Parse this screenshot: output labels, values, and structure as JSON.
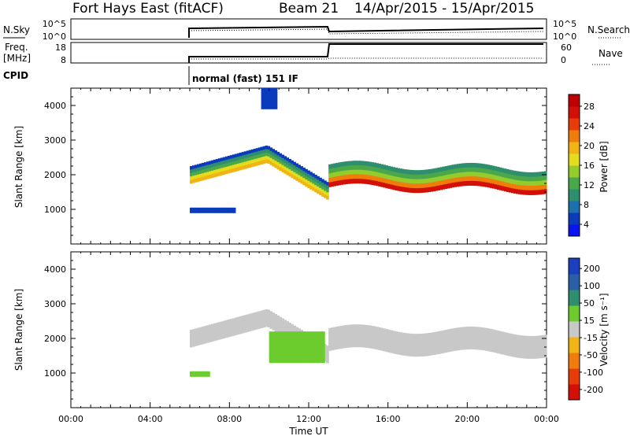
{
  "header": {
    "station": "Fort Hays East (fitACF)",
    "beam": "Beam 21",
    "dates": "14/Apr/2015 - 15/Apr/2015"
  },
  "panel_labels": {
    "nsky": "N.Sky",
    "freq": "Freq.",
    "freq_unit": "[MHz]",
    "cpid": "CPID",
    "nsearch": "N.Search",
    "nave": "Nave",
    "nsky_ticks": [
      "10^5",
      "10^0"
    ],
    "nsearch_ticks": [
      "10^5",
      "10^0"
    ],
    "freq_ticks": [
      "18",
      "8"
    ],
    "nave_ticks": [
      "60",
      "0"
    ],
    "cpid_label": "normal (fast) 151 IF"
  },
  "chart_data": [
    {
      "type": "heatmap",
      "panel": "power",
      "ylabel": "Slant Range [km]",
      "xlabel": "",
      "yticks": [
        "1000",
        "2000",
        "3000",
        "4000"
      ],
      "ylim": [
        0,
        4500
      ],
      "xlim": [
        0,
        24
      ],
      "colorbar": {
        "label": "Power [dB]",
        "ticks": [
          "4",
          "8",
          "12",
          "16",
          "20",
          "24",
          "28"
        ],
        "colors": [
          "#0a14f0",
          "#0b3bbd",
          "#1e6fae",
          "#2e8e6e",
          "#4aa84a",
          "#94cc2e",
          "#e6dc1e",
          "#f0b414",
          "#f07c0c",
          "#e83c08",
          "#d21008",
          "#c00000"
        ]
      },
      "echo_regions": [
        {
          "t_start": 6.0,
          "t_end": 13.0,
          "range_km": [
            1250,
            2700
          ],
          "power_db": [
            8,
            20
          ]
        },
        {
          "t_start": 13.0,
          "t_end": 24.0,
          "range_km": [
            1500,
            2500
          ],
          "power_db": [
            8,
            28
          ]
        },
        {
          "t_start": 6.0,
          "t_end": 8.3,
          "range_km": [
            900,
            1050
          ],
          "power_db": [
            4,
            8
          ]
        },
        {
          "t_start": 9.6,
          "t_end": 10.4,
          "range_km": [
            3900,
            4500
          ],
          "power_db": [
            4,
            8
          ]
        }
      ]
    },
    {
      "type": "heatmap",
      "panel": "velocity",
      "ylabel": "Slant Range [km]",
      "xlabel": "Time UT",
      "yticks": [
        "1000",
        "2000",
        "3000",
        "4000"
      ],
      "ylim": [
        0,
        4500
      ],
      "xlim": [
        0,
        24
      ],
      "xticks": [
        "00:00",
        "04:00",
        "08:00",
        "12:00",
        "16:00",
        "20:00",
        "00:00"
      ],
      "colorbar": {
        "label": "Velocity [m s⁻¹]",
        "ticks": [
          "200",
          "100",
          "50",
          "15",
          "-15",
          "-50",
          "-100",
          "-200"
        ],
        "colors": [
          "#1a3fc0",
          "#2a5fa8",
          "#2e8e6e",
          "#6ccc2e",
          "#c8c8c8",
          "#f0b414",
          "#f07c0c",
          "#e83c08",
          "#d21008"
        ]
      },
      "echo_regions": [
        {
          "t_start": 6.0,
          "t_end": 13.0,
          "range_km": [
            1250,
            2700
          ],
          "velocity_ms": [
            -15,
            15
          ]
        },
        {
          "t_start": 13.0,
          "t_end": 24.0,
          "range_km": [
            1500,
            2500
          ],
          "velocity_ms": [
            -15,
            15
          ]
        },
        {
          "t_start": 6.0,
          "t_end": 7.0,
          "range_km": [
            900,
            1050
          ],
          "velocity_ms": [
            15,
            50
          ]
        },
        {
          "t_start": 10.0,
          "t_end": 12.8,
          "range_km": [
            1300,
            2200
          ],
          "velocity_ms": [
            15,
            50
          ]
        }
      ]
    }
  ],
  "colors": {
    "axis": "#000000",
    "background": "#ffffff"
  }
}
